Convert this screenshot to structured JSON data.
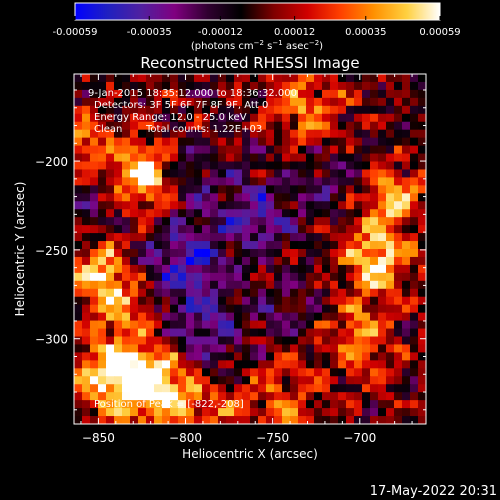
{
  "chart_data": {
    "type": "heatmap",
    "title": "Reconstructed RHESSI Image",
    "colorbar": {
      "tick_labels": [
        "-0.00059",
        "-0.00035",
        "-0.00012",
        "0.00012",
        "0.00035",
        "0.00059"
      ],
      "tick_values": [
        -0.00059,
        -0.00035,
        -0.00012,
        0.00012,
        0.00035,
        0.00059
      ],
      "range": [
        -0.00059,
        0.00059
      ],
      "units_base": "(photons cm",
      "units_sup1": "−2",
      "units_mid": " s",
      "units_sup2": "−1",
      "units_mid2": " asec",
      "units_sup3": "−2",
      "units_end": ")"
    },
    "xlabel": "Heliocentric X (arcsec)",
    "ylabel": "Heliocentric Y (arcsec)",
    "xlim": [
      -864,
      -662
    ],
    "ylim": [
      -348,
      -151
    ],
    "x_ticks": [
      -850,
      -800,
      -750,
      -700
    ],
    "x_tick_labels": [
      "−850",
      "−800",
      "−750",
      "−700"
    ],
    "y_ticks": [
      -200,
      -250,
      -300
    ],
    "y_tick_labels": [
      "−200",
      "−250",
      "−300"
    ],
    "annotations": {
      "time_range": "9-Jan-2015 18:35:12.000 to 18:36:32.000",
      "detectors": "Detectors: 3F 5F 6F 7F 8F 9F, Att 0",
      "energy_range": "Energy Range: 12.0 - 25.0 keV",
      "algorithm": "Clean",
      "total_counts": "Total counts: 1.22E+03",
      "peak_position": "Position of Peak = [-822,-208]"
    },
    "peak": [
      -822,
      -208
    ],
    "colormap": [
      "#0000ff",
      "#2020c0",
      "#5020a0",
      "#800080",
      "#300030",
      "#000000",
      "#800000",
      "#d00000",
      "#ff4000",
      "#ff9000",
      "#ffd040",
      "#ffffff"
    ]
  },
  "footer": {
    "timestamp": "17-May-2022 20:31"
  }
}
